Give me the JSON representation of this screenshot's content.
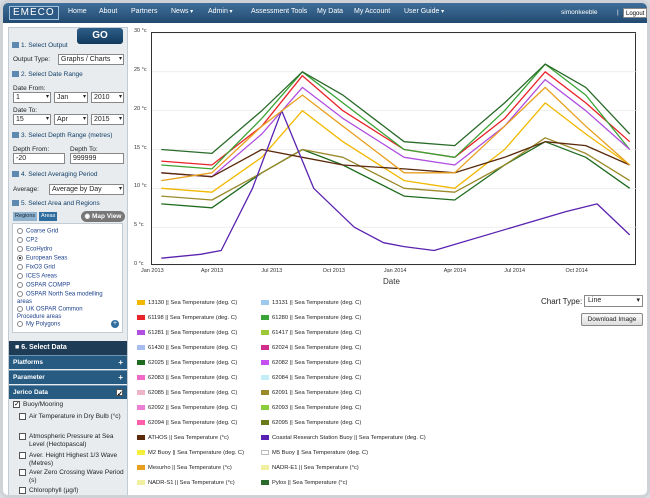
{
  "topbar": {
    "logo": "EMECO",
    "nav": [
      {
        "label": "Home",
        "dropdown": false
      },
      {
        "label": "About",
        "dropdown": false
      },
      {
        "label": "Partners",
        "dropdown": false
      },
      {
        "label": "News",
        "dropdown": true
      },
      {
        "label": "Admin",
        "dropdown": true
      },
      {
        "label": "Assessment Tools",
        "dropdown": false
      },
      {
        "label": "My Data",
        "dropdown": false
      },
      {
        "label": "My Account",
        "dropdown": false
      },
      {
        "label": "User Guide",
        "dropdown": true
      }
    ],
    "username": "simonkeeble",
    "separator": "|",
    "logout_label": "Logout"
  },
  "sidebar": {
    "go_label": "GO",
    "output": {
      "heading": "1. Select Output",
      "type_label": "Output Type:",
      "type_value": "Graphs / Charts"
    },
    "date": {
      "heading": "2. Select Date Range",
      "from_label": "Date From:",
      "from_day": "1",
      "from_month": "Jan",
      "from_year": "2010",
      "to_label": "Date To:",
      "to_day": "15",
      "to_month": "Apr",
      "to_year": "2015"
    },
    "depth": {
      "heading": "3. Select Depth Range (metres)",
      "from_label": "Depth From:",
      "from_value": "-20",
      "to_label": "Depth To:",
      "to_value": "999999"
    },
    "averaging": {
      "heading": "4. Select Averaging Period",
      "label": "Average:",
      "value": "Average by Day"
    },
    "area": {
      "heading": "5. Select Area and Regions",
      "tab_regions": "Regions",
      "tab_areas": "Areas",
      "map_view_label": "Map View",
      "regions": [
        {
          "label": "Coarse Grid",
          "selected": false
        },
        {
          "label": "CP2",
          "selected": false
        },
        {
          "label": "EcoHydro",
          "selected": false
        },
        {
          "label": "European Seas",
          "selected": true
        },
        {
          "label": "FixO3 Grid",
          "selected": false
        },
        {
          "label": "ICES Areas",
          "selected": false
        },
        {
          "label": "OSPAR COMPP",
          "selected": false
        },
        {
          "label": "OSPAR North Sea modelling areas",
          "selected": false
        },
        {
          "label": "UK OSPAR Common Procedure areas",
          "selected": false
        },
        {
          "label": "My Polygons",
          "selected": false
        }
      ],
      "add_symbol": "+"
    },
    "select_data": {
      "heading": "6. Select Data",
      "groups": [
        {
          "label": "Platforms",
          "symbol": "+"
        },
        {
          "label": "Parameter",
          "symbol": "+"
        },
        {
          "label": "Jerico Data",
          "checked": true
        }
      ],
      "buoy_label": "Buoy/Mooring",
      "buoy_checked": true,
      "params": [
        {
          "label": "Air Temperature in Dry Bulb (°c)",
          "checked": false
        },
        {
          "label": "Atmospheric Pressure at Sea Level (Hectopascal)",
          "checked": false
        },
        {
          "label": "Aver. Height Highest 1/3 Wave (Metres)",
          "checked": false
        },
        {
          "label": "Aver Zero Crossing Wave Period (s)",
          "checked": false
        },
        {
          "label": "Chlorophyll (µg/l)",
          "checked": false
        }
      ]
    }
  },
  "chart_controls": {
    "chart_type_label": "Chart Type:",
    "chart_type_value": "Line",
    "download_label": "Download Image"
  },
  "legend": [
    {
      "label": "13130 || Sea Temperature (deg. C)",
      "color": "#f2b800"
    },
    {
      "label": "13131 || Sea Temperature (deg. C)",
      "color": "#9ec9ee"
    },
    {
      "label": "61198 || Sea Temperature (deg. C)",
      "color": "#e8232a"
    },
    {
      "label": "61280 || Sea Temperature (deg. C)",
      "color": "#3aa335"
    },
    {
      "label": "61281 || Sea Temperature (deg. C)",
      "color": "#b04fe0"
    },
    {
      "label": "61417 || Sea Temperature (deg. C)",
      "color": "#9bc837"
    },
    {
      "label": "61430 || Sea Temperature (deg. C)",
      "color": "#a6bdf0"
    },
    {
      "label": "62024 || Sea Temperature (deg. C)",
      "color": "#d22c8f"
    },
    {
      "label": "62025 || Sea Temperature (deg. C)",
      "color": "#1f6b1f"
    },
    {
      "label": "62082 || Sea Temperature (deg. C)",
      "color": "#c64ff2"
    },
    {
      "label": "62083 || Sea Temperature (deg. C)",
      "color": "#f06bc8"
    },
    {
      "label": "62084 || Sea Temperature (deg. C)",
      "color": "#c3eef7"
    },
    {
      "label": "62085 || Sea Temperature (deg. C)",
      "color": "#eeb5c6"
    },
    {
      "label": "62091 || Sea Temperature (deg. C)",
      "color": "#9a8a2a"
    },
    {
      "label": "62092 || Sea Temperature (deg. C)",
      "color": "#ea7fd4"
    },
    {
      "label": "62093 || Sea Temperature (deg. C)",
      "color": "#8bcc3a"
    },
    {
      "label": "62094 || Sea Temperature (deg. C)",
      "color": "#ff5fa8"
    },
    {
      "label": "62095 || Sea Temperature (deg. C)",
      "color": "#6a7a1a"
    },
    {
      "label": "ATHOS || Sea Temperature (°c)",
      "color": "#5a2a0a"
    },
    {
      "label": "Coastal Research Station Buoy || Sea Temperature (deg. C)",
      "color": "#5a22b0"
    },
    {
      "label": "M2 Buoy || Sea Temperature (deg. C)",
      "color": "#f4ef3a"
    },
    {
      "label": "M5 Buoy || Sea Temperature (deg. C)",
      "color": "#ffffff"
    },
    {
      "label": "Mesurho || Sea Temperature (°c)",
      "color": "#e8a020"
    },
    {
      "label": "NADR-E1 || Sea Temperature (°c)",
      "color": "#f0f0a0"
    },
    {
      "label": "NADR-S1 || Sea Temperature (°c)",
      "color": "#f0f0a0"
    },
    {
      "label": "Pylos || Sea Temperature (°c)",
      "color": "#2a6a2a"
    }
  ],
  "chart_data": {
    "type": "line",
    "xlabel": "Date",
    "ylabel": "",
    "x_ticks": [
      "Jan 2013",
      "Apr 2013",
      "Jul 2013",
      "Oct 2013",
      "Jan 2014",
      "Apr 2014",
      "Jul 2014",
      "Oct 2014"
    ],
    "y_ticks": [
      "0 °c",
      "5 °c",
      "10 °c",
      "15 °c",
      "20 °c",
      "25 °c",
      "30 °c"
    ],
    "ylim": [
      0,
      30
    ],
    "xlim": [
      "2013-01-01",
      "2014-12-31"
    ],
    "grid": true,
    "series": [
      {
        "name": "13130 || Sea Temperature (deg. C)",
        "color": "#f2b800",
        "x": [
          "2013-01-15",
          "2013-04-01",
          "2013-06-15",
          "2013-08-15",
          "2013-10-15",
          "2014-01-15",
          "2014-04-01",
          "2014-06-15",
          "2014-08-15",
          "2014-10-15",
          "2014-12-20"
        ],
        "y": [
          10,
          9.5,
          14,
          20,
          16,
          11,
          10,
          15,
          21,
          17,
          13
        ]
      },
      {
        "name": "61198 || Sea Temperature (deg. C)",
        "color": "#e8232a",
        "x": [
          "2013-01-15",
          "2013-04-01",
          "2013-06-15",
          "2013-08-15",
          "2013-10-15",
          "2014-01-15",
          "2014-04-01",
          "2014-06-15",
          "2014-08-15",
          "2014-10-15",
          "2014-12-20"
        ],
        "y": [
          13.5,
          13,
          18,
          24.5,
          20,
          15,
          14,
          19,
          25,
          21,
          16
        ]
      },
      {
        "name": "61280 || Sea Temperature (deg. C)",
        "color": "#3aa335",
        "x": [
          "2013-01-15",
          "2013-04-01",
          "2013-06-15",
          "2013-08-15",
          "2013-10-15",
          "2014-01-15",
          "2014-04-01",
          "2014-06-15",
          "2014-08-15",
          "2014-10-15",
          "2014-12-20"
        ],
        "y": [
          13,
          12.5,
          19,
          25,
          21,
          15,
          14,
          20,
          26,
          22,
          15
        ]
      },
      {
        "name": "61281 || Sea Temperature (deg. C)",
        "color": "#b04fe0",
        "x": [
          "2013-01-15",
          "2013-04-01",
          "2013-06-15",
          "2013-08-15",
          "2013-10-15",
          "2014-01-15",
          "2014-04-01",
          "2014-06-15",
          "2014-08-15",
          "2014-10-15",
          "2014-12-20"
        ],
        "y": [
          12,
          11.5,
          17,
          23,
          19,
          14,
          13,
          18,
          24,
          20,
          15
        ]
      },
      {
        "name": "62025 || Sea Temperature (deg. C)",
        "color": "#1f6b1f",
        "x": [
          "2013-01-15",
          "2013-04-01",
          "2013-06-15",
          "2013-08-15",
          "2013-10-15",
          "2014-01-15",
          "2014-04-01",
          "2014-06-15",
          "2014-08-15",
          "2014-10-15",
          "2014-12-20"
        ],
        "y": [
          8,
          7.5,
          12,
          15,
          13,
          9,
          8.5,
          13,
          16,
          14,
          10
        ]
      },
      {
        "name": "62091 || Sea Temperature (deg. C)",
        "color": "#9a8a2a",
        "x": [
          "2013-01-15",
          "2013-04-01",
          "2013-06-15",
          "2013-08-15",
          "2013-10-15",
          "2014-01-15",
          "2014-04-01",
          "2014-06-15",
          "2014-08-15",
          "2014-10-15",
          "2014-12-20"
        ],
        "y": [
          9,
          8.5,
          12,
          15,
          14,
          10,
          9.5,
          13,
          16.5,
          14.5,
          11
        ]
      },
      {
        "name": "ATHOS || Sea Temperature (°c)",
        "color": "#5a2a0a",
        "x": [
          "2013-01-15",
          "2013-04-01",
          "2013-06-15",
          "2013-08-15",
          "2013-10-15",
          "2014-01-15",
          "2014-04-01",
          "2014-06-15",
          "2014-08-15",
          "2014-10-15",
          "2014-12-20"
        ],
        "y": [
          12,
          11.5,
          15,
          14,
          13,
          12.5,
          12,
          14,
          16,
          15.5,
          13
        ]
      },
      {
        "name": "Coastal Research Station Buoy || Sea Temperature (deg. C)",
        "color": "#5a22b0",
        "x": [
          "2013-01-15",
          "2013-03-15",
          "2013-04-15",
          "2013-06-01",
          "2013-07-15",
          "2013-09-01",
          "2013-11-01",
          "2013-12-15",
          "2014-01-15",
          "2014-03-01",
          "2014-09-15",
          "2014-11-01",
          "2014-12-20"
        ],
        "y": [
          1,
          1.5,
          2,
          10,
          20,
          10,
          5,
          3,
          2.5,
          2,
          7,
          8,
          4
        ]
      },
      {
        "name": "Mesurho || Sea Temperature (°c)",
        "color": "#e8a020",
        "x": [
          "2013-01-15",
          "2013-04-01",
          "2013-06-15",
          "2013-08-15",
          "2013-10-15",
          "2014-01-15",
          "2014-04-01",
          "2014-06-15",
          "2014-08-15",
          "2014-10-15",
          "2014-12-20"
        ],
        "y": [
          11,
          12,
          18,
          22,
          18,
          12,
          12,
          18,
          23,
          18,
          13
        ]
      },
      {
        "name": "Pylos || Sea Temperature (°c)",
        "color": "#2a6a2a",
        "x": [
          "2013-01-15",
          "2013-04-01",
          "2013-06-15",
          "2013-08-15",
          "2013-10-15",
          "2014-01-15",
          "2014-04-01",
          "2014-06-15",
          "2014-08-15",
          "2014-10-15",
          "2014-12-20"
        ],
        "y": [
          15,
          14.5,
          20,
          25,
          22,
          16,
          15.5,
          21,
          26,
          23,
          17
        ]
      }
    ]
  }
}
